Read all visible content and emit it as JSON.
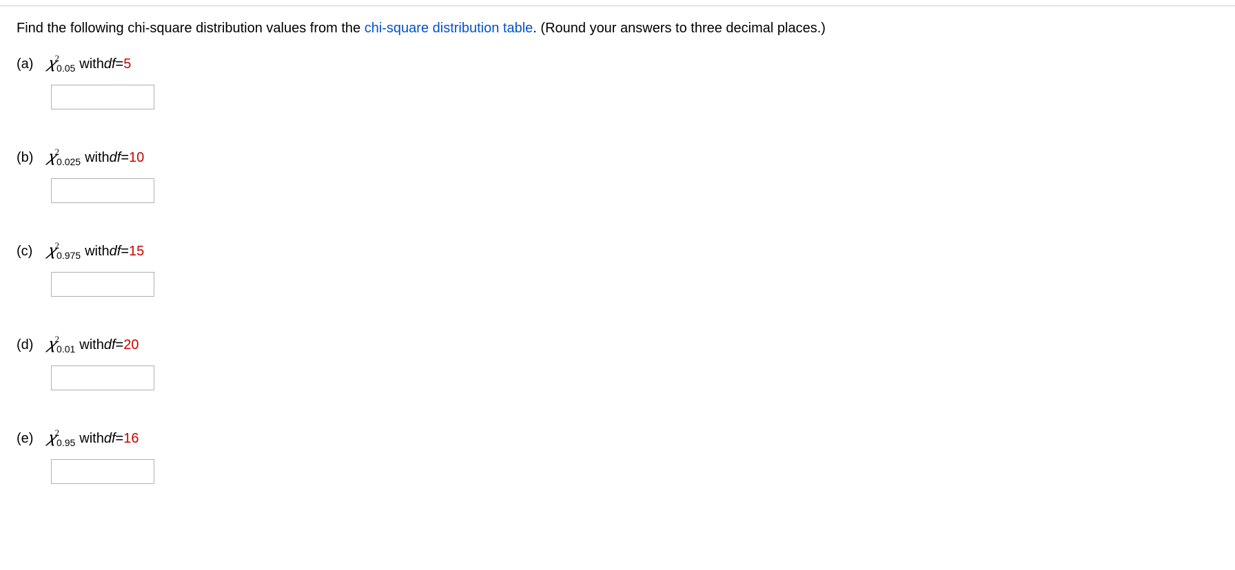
{
  "colors": {
    "link_color": "#0052cc",
    "highlight_color": "#cc0000",
    "text_color": "#000000",
    "border_color": "#b0b0b0",
    "background_color": "#ffffff",
    "divider_color": "#d0d0d0"
  },
  "typography": {
    "body_font": "Arial, Helvetica, sans-serif",
    "math_font": "Times New Roman, Times, serif",
    "body_size_pt": 15,
    "sup_size_pt": 10,
    "sub_size_pt": 11
  },
  "intro": {
    "prefix": "Find the following chi-square distribution values from the ",
    "link_text": "chi-square distribution table",
    "suffix": ". (Round your answers to three decimal places.)"
  },
  "problems": [
    {
      "label": "(a)",
      "chi_base": "𝜒",
      "chi_sup": "2",
      "chi_sub": "0.05",
      "with_text": " with ",
      "df_label": "df",
      "equals": " = ",
      "df_value": "5",
      "input_value": ""
    },
    {
      "label": "(b)",
      "chi_base": "𝜒",
      "chi_sup": "2",
      "chi_sub": "0.025",
      "with_text": " with ",
      "df_label": "df",
      "equals": " = ",
      "df_value": "10",
      "input_value": ""
    },
    {
      "label": "(c)",
      "chi_base": "𝜒",
      "chi_sup": "2",
      "chi_sub": "0.975",
      "with_text": " with ",
      "df_label": "df",
      "equals": " = ",
      "df_value": "15",
      "input_value": ""
    },
    {
      "label": "(d)",
      "chi_base": "𝜒",
      "chi_sup": "2",
      "chi_sub": "0.01",
      "with_text": " with ",
      "df_label": "df",
      "equals": " = ",
      "df_value": "20",
      "input_value": ""
    },
    {
      "label": "(e)",
      "chi_base": "𝜒",
      "chi_sup": "2",
      "chi_sub": "0.95",
      "with_text": " with ",
      "df_label": "df",
      "equals": " = ",
      "df_value": "16",
      "input_value": ""
    }
  ]
}
